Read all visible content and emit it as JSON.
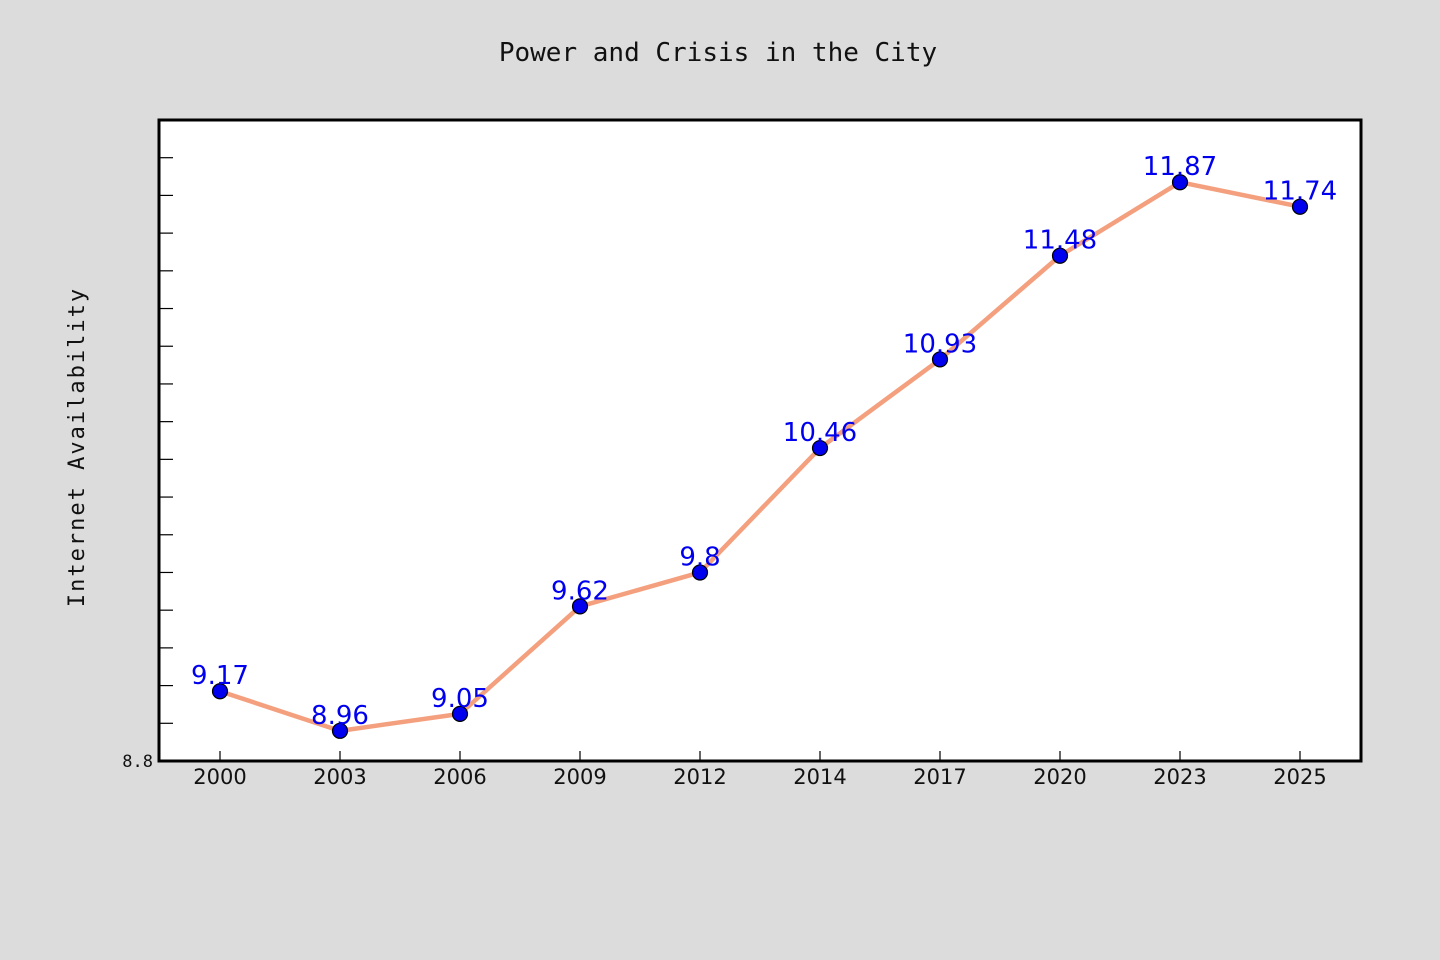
{
  "chart_data": {
    "type": "line",
    "title": "Power and Crisis in the City",
    "xlabel": "",
    "ylabel": "Internet Availability",
    "categories": [
      "2000",
      "2003",
      "2006",
      "2009",
      "2012",
      "2014",
      "2017",
      "2020",
      "2023",
      "2025"
    ],
    "series": [
      {
        "values": [
          9.17,
          8.96,
          9.05,
          9.62,
          9.8,
          10.46,
          10.93,
          11.48,
          11.87,
          11.74
        ],
        "labels": [
          "9.17",
          "8.96",
          "9.05",
          "9.62",
          "9.8",
          "10.46",
          "10.93",
          "11.48",
          "11.87",
          "11.74"
        ]
      }
    ],
    "ylim": [
      8.8,
      12.2
    ],
    "yticks": [
      "8.8"
    ],
    "grid": false,
    "legend": "none",
    "colors": {
      "background": "#dcdcdc",
      "plot_background": "#ffffff",
      "line": "#f4a07e",
      "marker": "#0000ee",
      "marker_edge": "#000000",
      "label": "#0000ee",
      "axis": "#000000"
    }
  }
}
